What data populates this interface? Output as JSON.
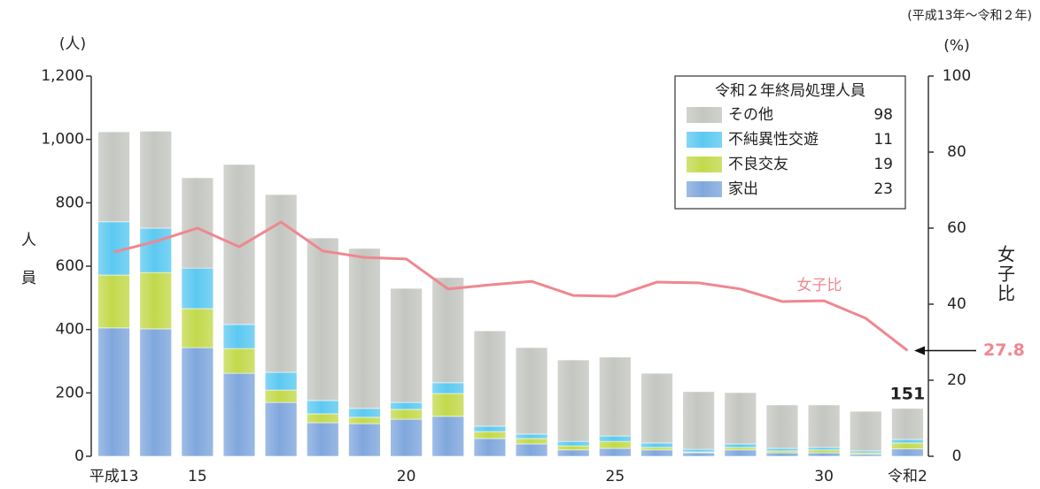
{
  "chart_data": {
    "type": "bar",
    "subtitle": "(平成13年〜令和２年)",
    "y_unit": "(人)",
    "y2_unit": "(%)",
    "y_label": "人員",
    "y2_label": "女子比",
    "legend_title": "令和２年終局処理人員",
    "categories": [
      "平成13",
      null,
      "15",
      null,
      null,
      null,
      null,
      "20",
      null,
      null,
      null,
      null,
      "25",
      null,
      null,
      null,
      null,
      "30",
      null,
      "令和2"
    ],
    "stacked": true,
    "series": [
      {
        "name": "家出",
        "color": "#80a7dd",
        "values": [
          405,
          402,
          343,
          262,
          170,
          106,
          103,
          117,
          126,
          56,
          39,
          20,
          25,
          20,
          11,
          20,
          11,
          11,
          6,
          23
        ]
      },
      {
        "name": "不良交友",
        "color": "#c3d94b",
        "values": [
          167,
          178,
          123,
          78,
          39,
          28,
          20,
          31,
          72,
          22,
          17,
          13,
          22,
          8,
          3,
          8,
          6,
          9,
          5,
          19
        ]
      },
      {
        "name": "不純異性交遊",
        "color": "#5cc9f1",
        "values": [
          168,
          140,
          128,
          76,
          56,
          42,
          28,
          22,
          34,
          17,
          14,
          14,
          17,
          14,
          8,
          11,
          8,
          8,
          6,
          11
        ]
      },
      {
        "name": "その他",
        "color": "#c4c6c1",
        "values": [
          284,
          306,
          285,
          505,
          561,
          513,
          505,
          360,
          332,
          301,
          273,
          257,
          249,
          220,
          182,
          162,
          137,
          134,
          125,
          98
        ]
      },
      {
        "name": "女子比",
        "type": "line",
        "axis": "y2",
        "color": "#ef8790",
        "values": [
          53.7,
          56.5,
          60,
          55.1,
          61.6,
          54,
          52.3,
          51.9,
          44,
          45.1,
          46,
          42.3,
          42.1,
          45.8,
          45.6,
          44,
          40.7,
          40.9,
          36.3,
          27.8
        ]
      }
    ],
    "total_label": 151,
    "ylim": [
      0,
      1200
    ],
    "yticks": [
      0,
      200,
      400,
      600,
      800,
      {
        "value": 1000,
        "label": "1,000"
      },
      {
        "value": 1200,
        "label": "1,200"
      }
    ],
    "y2lim": [
      0,
      100
    ],
    "y2ticks": [
      0,
      20,
      40,
      60,
      80,
      100
    ]
  }
}
